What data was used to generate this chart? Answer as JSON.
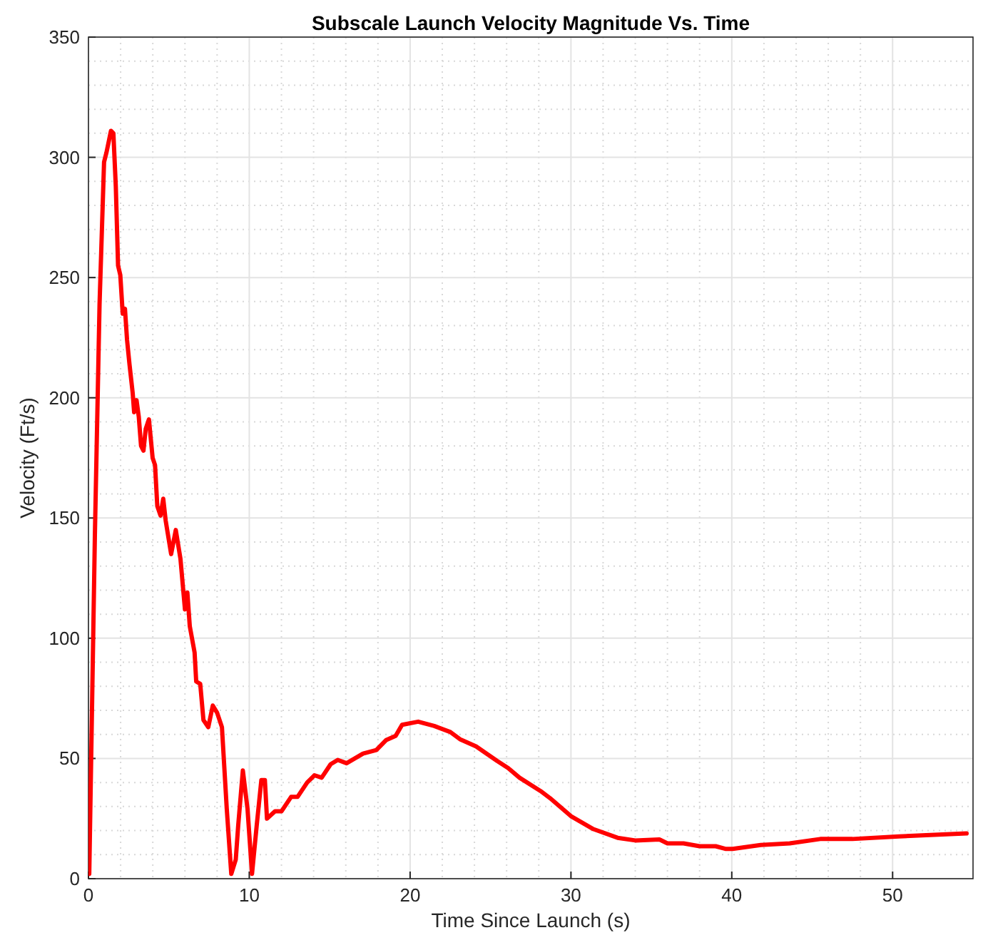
{
  "chart_data": {
    "type": "line",
    "title": "Subscale Launch Velocity Magnitude Vs. Time",
    "xlabel": "Time Since Launch (s)",
    "ylabel": "Velocity (Ft/s)",
    "xlim": [
      0,
      55
    ],
    "ylim": [
      0,
      350
    ],
    "xticks": [
      0,
      10,
      20,
      30,
      40,
      50
    ],
    "yticks": [
      0,
      50,
      100,
      150,
      200,
      250,
      300,
      350
    ],
    "grid": true,
    "line_style": "solid",
    "marker": "none",
    "series": [
      {
        "color": "#ff0000",
        "x": [
          0,
          0.05,
          0.4,
          0.69,
          0.97,
          1.12,
          1.4,
          1.55,
          1.7,
          1.84,
          1.98,
          2.13,
          2.27,
          2.4,
          2.55,
          2.75,
          2.84,
          2.99,
          3.13,
          3.27,
          3.42,
          3.56,
          3.76,
          3.99,
          4.14,
          4.28,
          4.48,
          4.65,
          4.8,
          5.14,
          5.43,
          5.72,
          6.0,
          6.15,
          6.3,
          6.6,
          6.7,
          6.95,
          7.15,
          7.45,
          7.73,
          8.0,
          8.3,
          8.6,
          8.88,
          9.16,
          9.31,
          9.6,
          9.89,
          10.17,
          10.46,
          10.75,
          10.97,
          11.1,
          11.6,
          12.0,
          12.6,
          13.0,
          13.6,
          14.05,
          14.5,
          15.06,
          15.5,
          16.05,
          17.07,
          17.9,
          18.5,
          19.1,
          19.5,
          20.5,
          21.5,
          22.5,
          23.1,
          24.1,
          25.4,
          26.1,
          26.8,
          28.1,
          28.7,
          30.0,
          31.4,
          32.9,
          34.0,
          35.5,
          36.0,
          37.0,
          38.0,
          39.0,
          39.6,
          40.05,
          41.8,
          43.6,
          45.5,
          47.5,
          50.4,
          54.6
        ],
        "values": [
          20,
          2,
          143,
          239,
          298,
          302,
          311,
          310,
          288,
          255,
          251,
          235,
          237,
          224,
          214,
          202,
          194,
          199,
          192,
          180,
          178,
          187,
          191,
          175,
          172,
          155,
          151,
          158,
          149,
          135,
          145,
          133,
          112,
          119,
          105,
          94,
          82,
          81,
          66,
          63,
          72,
          69,
          63,
          29,
          2,
          8,
          22,
          45,
          29,
          2,
          22,
          41,
          41,
          25,
          28,
          28,
          34,
          34,
          40,
          43,
          42,
          47.6,
          49.4,
          48,
          52,
          53.5,
          57.6,
          59.4,
          64,
          65.3,
          63.5,
          61,
          58,
          55,
          49,
          46,
          42,
          36.5,
          33.5,
          26,
          20.6,
          17,
          15.9,
          16.3,
          14.7,
          14.7,
          13.5,
          13.5,
          12.4,
          12.4,
          14,
          14.7,
          16.5,
          16.5,
          17.6,
          18.8
        ]
      }
    ]
  }
}
